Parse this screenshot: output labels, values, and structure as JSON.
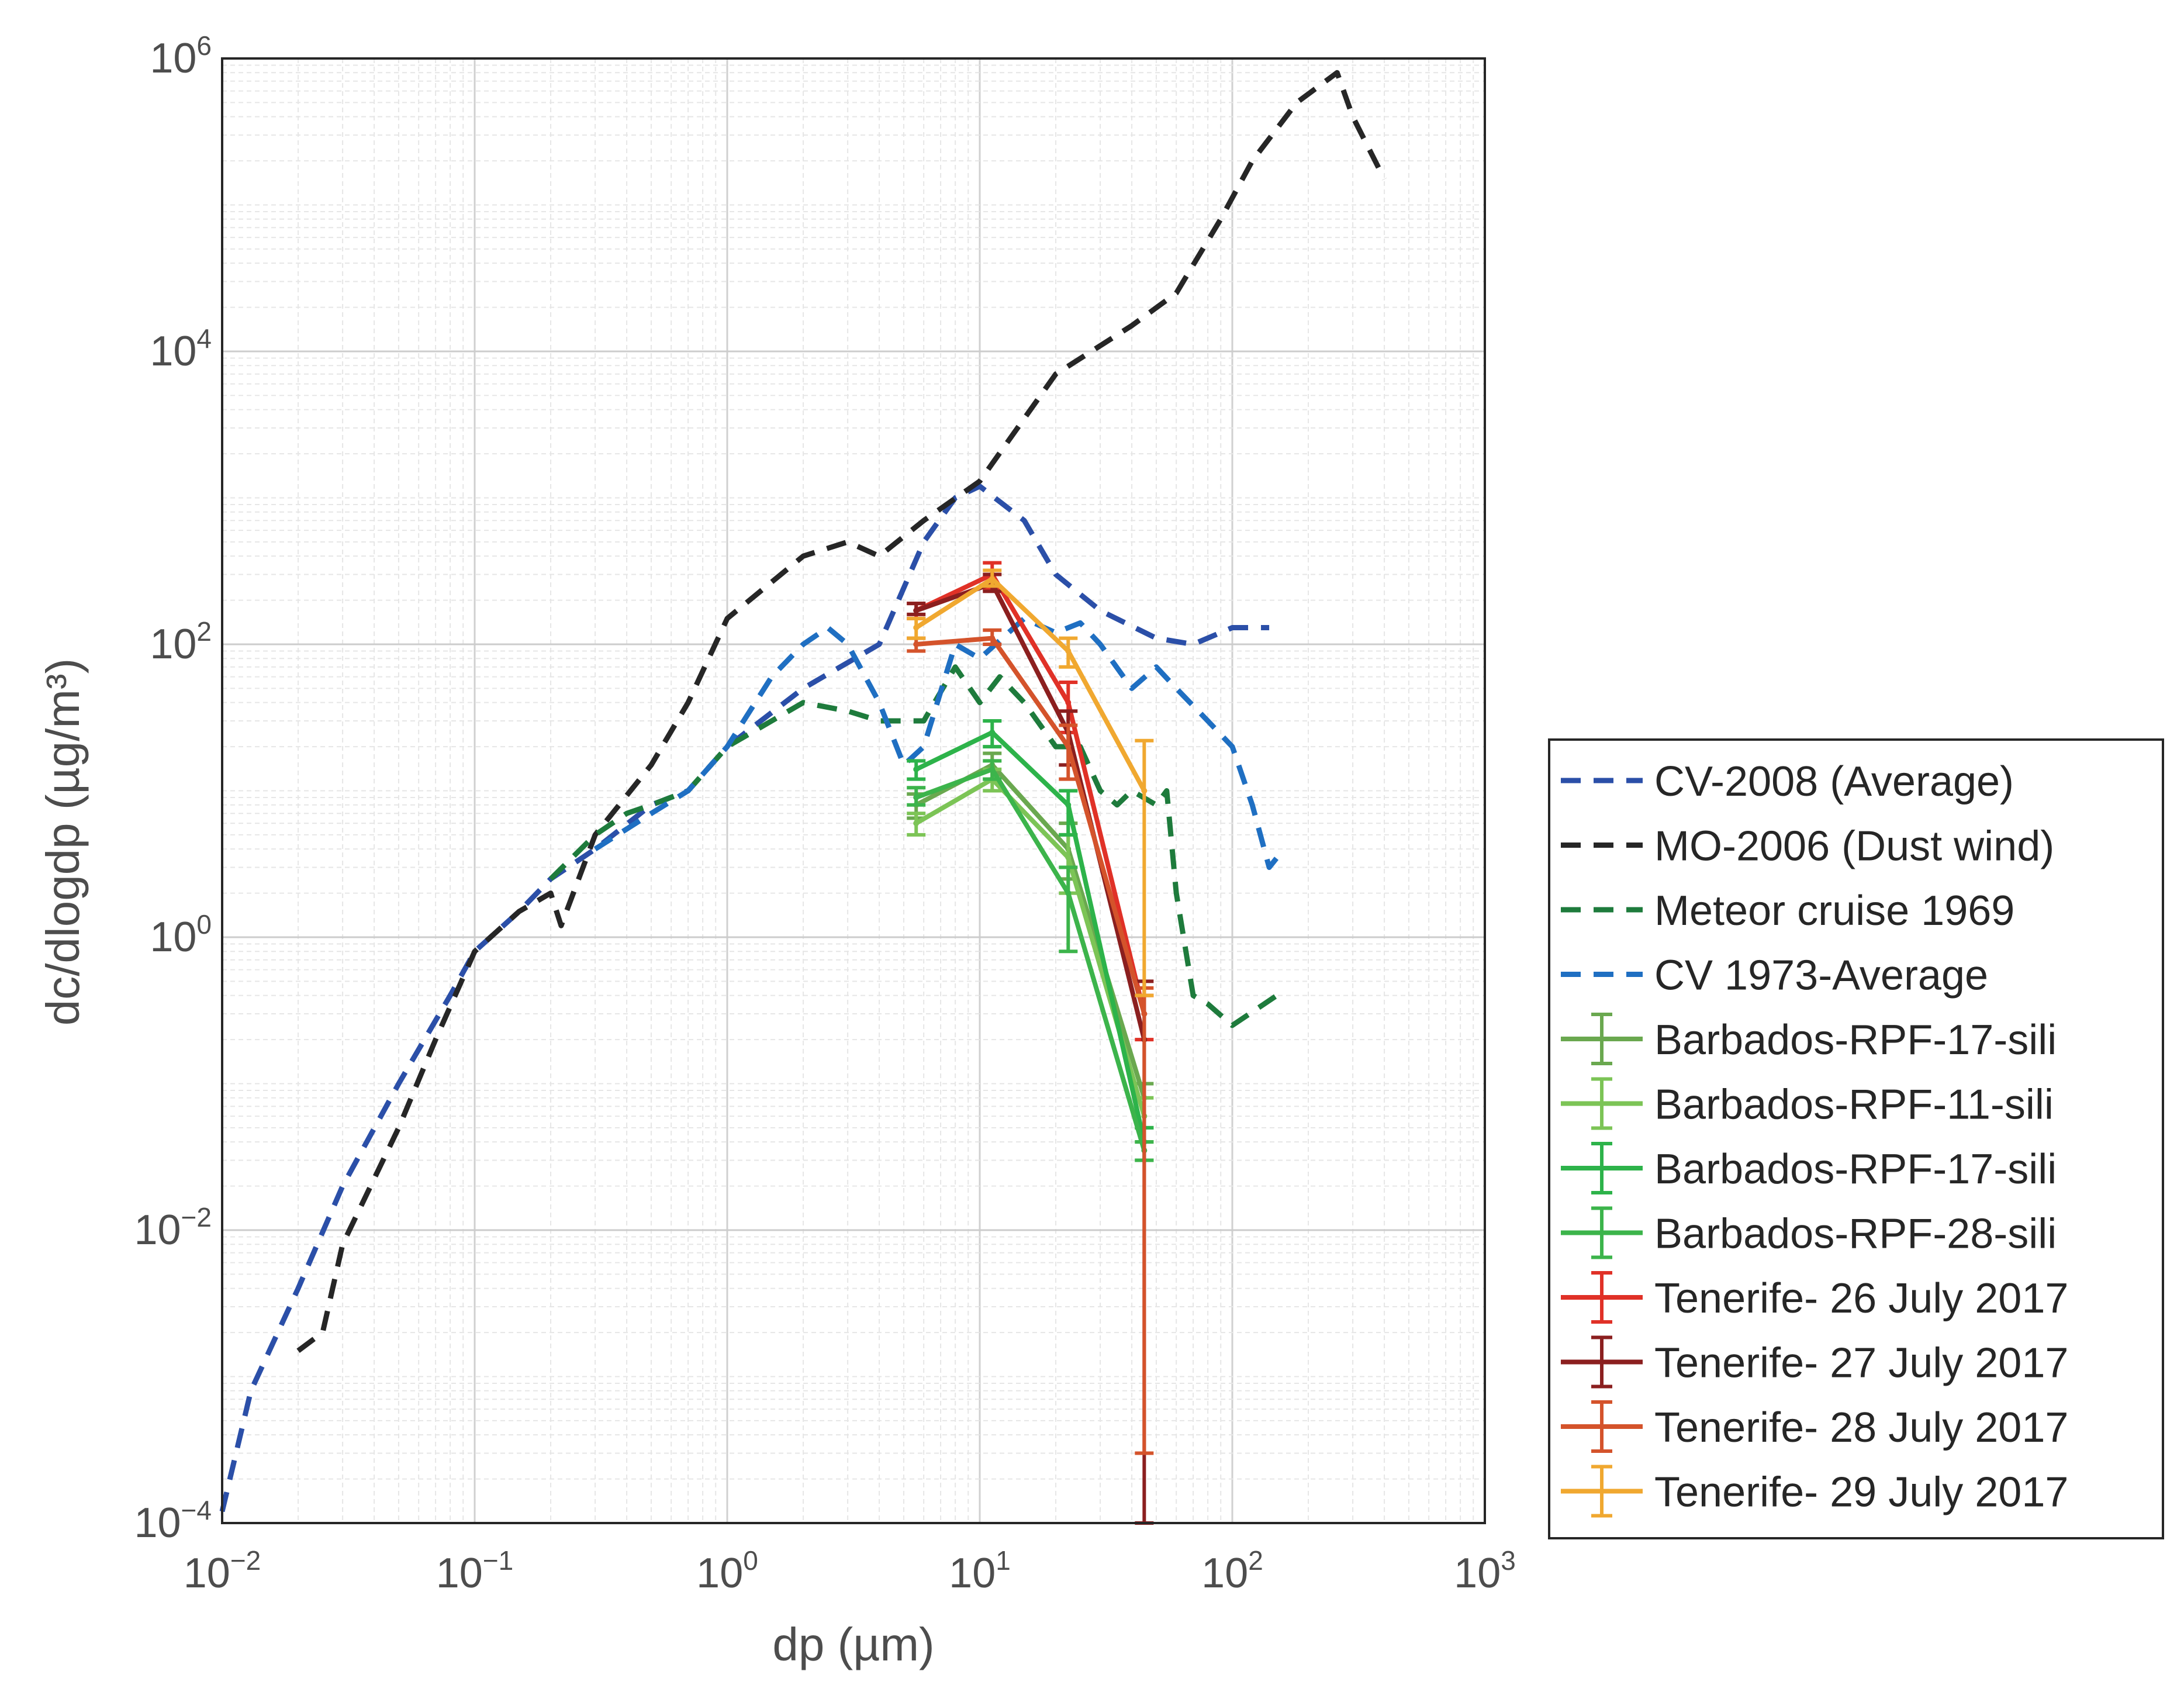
{
  "chart_data": {
    "type": "line",
    "title": "",
    "xlabel": "dp (µm)",
    "ylabel": "dc/dlogdp (µg/m³)",
    "xscale": "log",
    "yscale": "log",
    "xlim": [
      0.01,
      1000
    ],
    "ylim": [
      0.0001,
      1000000
    ],
    "x_ticks": [
      {
        "base": "10",
        "exp": "−2",
        "value": 0.01
      },
      {
        "base": "10",
        "exp": "−1",
        "value": 0.1
      },
      {
        "base": "10",
        "exp": "0",
        "value": 1
      },
      {
        "base": "10",
        "exp": "1",
        "value": 10
      },
      {
        "base": "10",
        "exp": "2",
        "value": 100
      },
      {
        "base": "10",
        "exp": "3",
        "value": 1000
      }
    ],
    "y_ticks": [
      {
        "base": "10",
        "exp": "−4",
        "value": 0.0001
      },
      {
        "base": "10",
        "exp": "−2",
        "value": 0.01
      },
      {
        "base": "10",
        "exp": "0",
        "value": 1
      },
      {
        "base": "10",
        "exp": "2",
        "value": 100
      },
      {
        "base": "10",
        "exp": "4",
        "value": 10000
      },
      {
        "base": "10",
        "exp": "6",
        "value": 1000000
      }
    ],
    "grid": true,
    "legend_position": "outside-right-bottom",
    "series": [
      {
        "name": "CV-2008 (Average)",
        "color": "#2b4fa8",
        "style": "dashed",
        "x": [
          0.01,
          0.013,
          0.02,
          0.03,
          0.05,
          0.08,
          0.1,
          0.15,
          0.2,
          0.3,
          0.5,
          0.7,
          1.0,
          2.0,
          4.0,
          6.0,
          8.0,
          10.0,
          15.0,
          20.0,
          30.0,
          50.0,
          70.0,
          100.0,
          140.0
        ],
        "y": [
          0.00012,
          0.0008,
          0.004,
          0.02,
          0.1,
          0.4,
          0.8,
          1.5,
          2.5,
          4.0,
          8.0,
          10.0,
          20.0,
          50.0,
          100.0,
          500.0,
          1000.0,
          1200.0,
          700.0,
          300.0,
          170.0,
          110.0,
          100.0,
          130.0,
          130.0
        ]
      },
      {
        "name": "MO-2006 (Dust wind)",
        "color": "#262626",
        "style": "dashed",
        "x": [
          0.02,
          0.025,
          0.03,
          0.05,
          0.07,
          0.1,
          0.15,
          0.2,
          0.22,
          0.3,
          0.5,
          0.7,
          1.0,
          2.0,
          3.0,
          4.0,
          6.0,
          10.0,
          20.0,
          40.0,
          60.0,
          90.0,
          120.0,
          180.0,
          260.0,
          300.0,
          400.0
        ],
        "y": [
          0.0015,
          0.002,
          0.008,
          0.05,
          0.2,
          0.8,
          1.5,
          2.0,
          1.2,
          5.0,
          15.0,
          40.0,
          150.0,
          400.0,
          500.0,
          400.0,
          700.0,
          1300.0,
          7000.0,
          15000.0,
          25000.0,
          80000.0,
          200000.0,
          500000.0,
          800000.0,
          400000.0,
          150000.0
        ]
      },
      {
        "name": "Meteor cruise 1969",
        "color": "#1e7b3c",
        "style": "dashed",
        "x": [
          0.2,
          0.3,
          0.4,
          0.5,
          0.7,
          1.0,
          2.0,
          3.0,
          4.0,
          5.0,
          6.0,
          8.0,
          10.0,
          12.0,
          15.0,
          20.0,
          25.0,
          30.0,
          35.0,
          40.0,
          50.0,
          55.0,
          60.0,
          70.0,
          80.0,
          100.0,
          150.0
        ],
        "y": [
          2.5,
          5.0,
          7.0,
          8.0,
          10.0,
          20.0,
          40.0,
          35.0,
          30.0,
          30.0,
          30.0,
          70.0,
          40.0,
          60.0,
          40.0,
          20.0,
          20.0,
          10.0,
          8.0,
          10.0,
          8.0,
          10.0,
          2.0,
          0.4,
          0.35,
          0.25,
          0.4
        ]
      },
      {
        "name": "CV 1973-Average",
        "color": "#1f6fc2",
        "style": "dashed",
        "x": [
          0.3,
          0.5,
          0.7,
          1.0,
          1.5,
          2.0,
          2.5,
          3.0,
          4.0,
          5.0,
          6.0,
          8.0,
          10.0,
          15.0,
          20.0,
          25.0,
          30.0,
          40.0,
          50.0,
          60.0,
          80.0,
          100.0,
          120.0,
          140.0,
          160.0
        ],
        "y": [
          4.0,
          7.0,
          10.0,
          20.0,
          60.0,
          100.0,
          130.0,
          100.0,
          40.0,
          15.0,
          20.0,
          100.0,
          80.0,
          150.0,
          120.0,
          140.0,
          100.0,
          50.0,
          70.0,
          50.0,
          30.0,
          20.0,
          8.0,
          3.0,
          4.0
        ]
      },
      {
        "name": "Barbados-RPF-17-sili",
        "color": "#6aa84f",
        "style": "solid",
        "x": [
          5.6,
          11.2,
          22.4,
          44.8
        ],
        "y": [
          8.0,
          15.0,
          4.0,
          0.08
        ],
        "err_low": [
          6.5,
          12.0,
          2.5,
          0.05
        ],
        "err_high": [
          9.5,
          18.0,
          6.0,
          0.1
        ]
      },
      {
        "name": "Barbados-RPF-11-sili",
        "color": "#7cc456",
        "style": "solid",
        "x": [
          5.6,
          11.2,
          22.4,
          44.8
        ],
        "y": [
          6.0,
          12.0,
          3.5,
          0.06
        ],
        "err_low": [
          5.0,
          10.0,
          2.0,
          0.04
        ],
        "err_high": [
          7.0,
          14.0,
          5.0,
          0.08
        ]
      },
      {
        "name": "Barbados-RPF-17-sili",
        "color": "#2db34a",
        "style": "solid",
        "x": [
          5.6,
          11.2,
          22.4,
          44.8
        ],
        "y": [
          14.0,
          25.0,
          8.0,
          0.04
        ],
        "err_low": [
          12.0,
          20.0,
          5.0,
          0.03
        ],
        "err_high": [
          16.0,
          30.0,
          10.0,
          0.05
        ]
      },
      {
        "name": "Barbados-RPF-28-sili",
        "color": "#3cb44b",
        "style": "solid",
        "x": [
          5.6,
          11.2,
          22.4,
          44.8
        ],
        "y": [
          9.0,
          14.0,
          2.0,
          0.035
        ],
        "err_low": [
          8.0,
          12.0,
          0.8,
          0.03
        ],
        "err_high": [
          10.5,
          16.0,
          3.0,
          0.04
        ]
      },
      {
        "name": "Tenerife- 26 July 2017",
        "color": "#e03127",
        "style": "solid",
        "x": [
          5.6,
          11.2,
          22.4,
          44.8
        ],
        "y": [
          170.0,
          300.0,
          40.0,
          0.3
        ],
        "err_low": [
          150.0,
          240.0,
          25.0,
          0.2
        ],
        "err_high": [
          190.0,
          360.0,
          55.0,
          0.4
        ]
      },
      {
        "name": "Tenerife- 27 July 2017",
        "color": "#8b1f1f",
        "style": "solid",
        "x": [
          5.6,
          11.2,
          22.4,
          44.8
        ],
        "y": [
          170.0,
          260.0,
          25.0,
          0.2
        ],
        "err_low": [
          160.0,
          230.0,
          15.0,
          0.0001
        ],
        "err_high": [
          190.0,
          300.0,
          35.0,
          0.5
        ]
      },
      {
        "name": "Tenerife- 28 July 2017",
        "color": "#d4532b",
        "style": "solid",
        "x": [
          5.6,
          11.2,
          22.4,
          44.8
        ],
        "y": [
          100.0,
          110.0,
          20.0,
          0.3
        ],
        "err_low": [
          90.0,
          100.0,
          12.0,
          0.0003
        ],
        "err_high": [
          110.0,
          125.0,
          28.0,
          0.45
        ]
      },
      {
        "name": "Tenerife- 29 July 2017",
        "color": "#f0a830",
        "style": "solid",
        "x": [
          5.6,
          11.2,
          22.4,
          44.8
        ],
        "y": [
          130.0,
          280.0,
          90.0,
          10.0
        ],
        "err_low": [
          110.0,
          250.0,
          70.0,
          0.4
        ],
        "err_high": [
          150.0,
          320.0,
          110.0,
          22.0
        ]
      }
    ]
  }
}
